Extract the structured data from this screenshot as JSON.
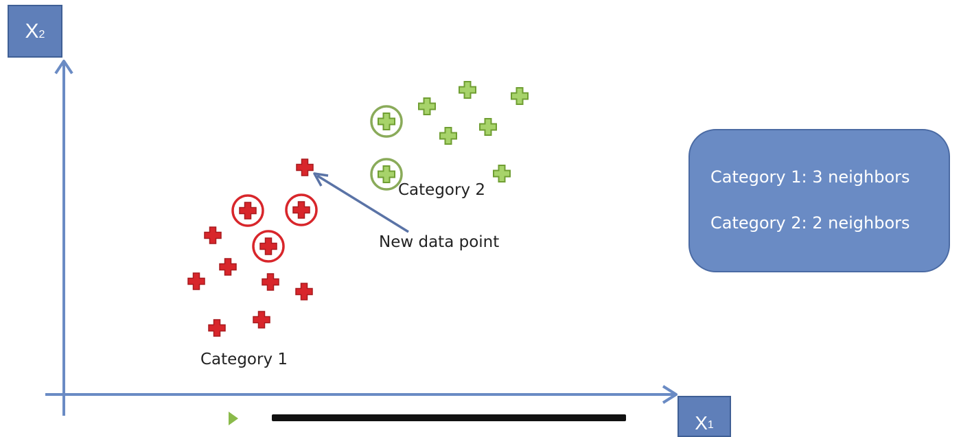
{
  "axes": {
    "y_label": "X",
    "y_sub": "2",
    "x_label": "X",
    "x_sub": "1"
  },
  "labels": {
    "category1": "Category 1",
    "category2": "Category 2",
    "new_point": "New data point"
  },
  "info_box": {
    "line1": "Category 1: 3 neighbors",
    "line2": "Category 2: 2 neighbors"
  },
  "colors": {
    "axis": "#6a8bc4",
    "category1": "#d8262b",
    "category2": "#8abf4a",
    "arrow": "#5a73a6",
    "box": "#6a8bc4"
  },
  "icons": {
    "point": "plus-icon",
    "neighbor": "circled-plus-icon"
  }
}
